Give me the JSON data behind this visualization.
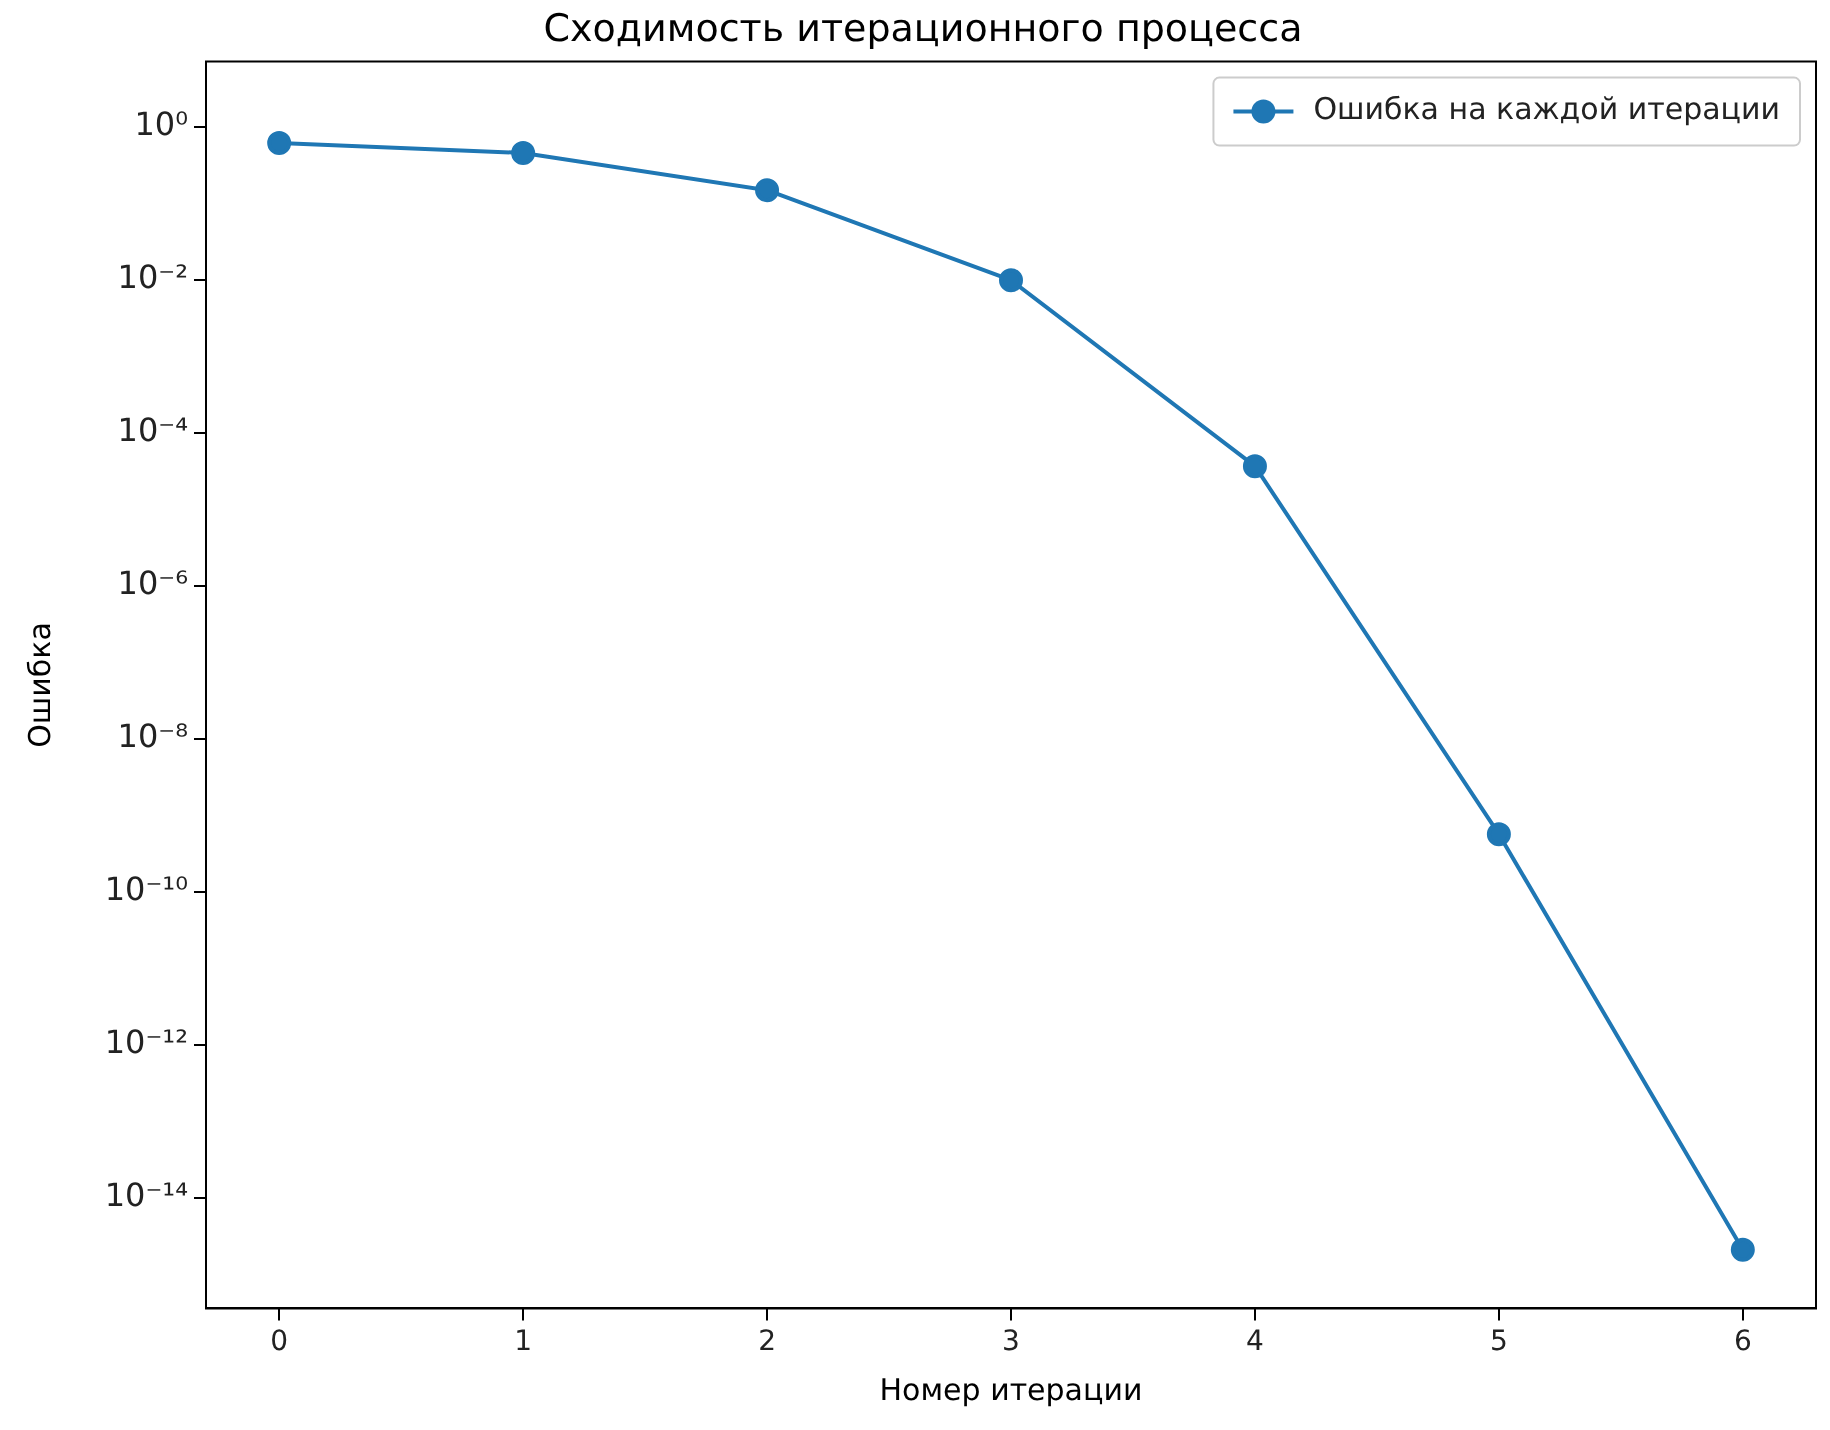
{
  "chart_data": {
    "type": "line",
    "title": "Сходимость итерационного процесса",
    "xlabel": "Номер итерации",
    "ylabel": "Ошибка",
    "x": [
      0,
      1,
      2,
      3,
      4,
      5,
      6
    ],
    "series": [
      {
        "name": "Ошибка на каждой итерации",
        "color": "#1f77b4",
        "values": [
          0.62,
          0.46,
          0.15,
          0.01,
          3.7e-05,
          5.7e-10,
          2.1e-15
        ]
      }
    ],
    "log": "y",
    "xlim": [
      -0.3,
      6.3
    ],
    "xticks": [
      0,
      1,
      2,
      3,
      4,
      5,
      6
    ],
    "ylim": [
      3.6e-16,
      7.2
    ],
    "yticks": [
      {
        "value": 1,
        "label": "10⁰"
      },
      {
        "value": 0.01,
        "label": "10⁻²"
      },
      {
        "value": 0.0001,
        "label": "10⁻⁴"
      },
      {
        "value": 1e-06,
        "label": "10⁻⁶"
      },
      {
        "value": 1e-08,
        "label": "10⁻⁸"
      },
      {
        "value": 1e-10,
        "label": "10⁻¹⁰"
      },
      {
        "value": 1e-12,
        "label": "10⁻¹²"
      },
      {
        "value": 1e-14,
        "label": "10⁻¹⁴"
      }
    ],
    "grid": false,
    "legend": "top right",
    "marker": "circle",
    "line_style": "solid"
  }
}
